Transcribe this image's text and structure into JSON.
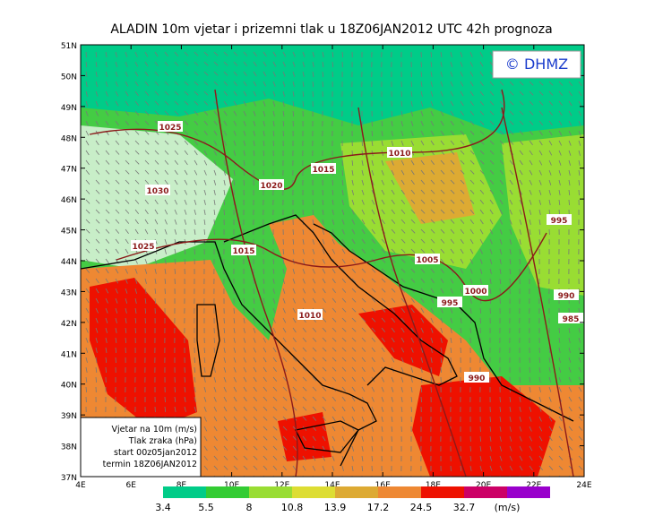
{
  "title": "ALADIN  10m  vjetar  i  prizemni  tlak  u  18Z06JAN2012  UTC  42h  prognoza",
  "logo": "© DHMZ",
  "lat_labels": [
    "51N",
    "50N",
    "49N",
    "48N",
    "47N",
    "46N",
    "45N",
    "44N",
    "43N",
    "42N",
    "41N",
    "40N",
    "39N",
    "38N",
    "37N"
  ],
  "lon_labels": [
    "4E",
    "6E",
    "8E",
    "10E",
    "12E",
    "14E",
    "16E",
    "18E",
    "20E",
    "22E",
    "24E"
  ],
  "info_box": [
    "Vjetar na 10m (m/s)",
    "Tlak zraka (hPa)",
    "start 00z05jan2012",
    "termin 18Z06JAN2012"
  ],
  "isobar_labels": [
    "1025",
    "1030",
    "1025",
    "1020",
    "1015",
    "1015",
    "1010",
    "1010",
    "1005",
    "1000",
    "995",
    "995",
    "990",
    "985",
    "990"
  ],
  "colorbar": {
    "colors": [
      "#00cc88",
      "#33cc33",
      "#99dd33",
      "#dddd33",
      "#ddaa33",
      "#ee8833",
      "#ee1100",
      "#cc0066",
      "#9900cc"
    ],
    "labels": [
      3.4,
      5.5,
      8,
      10.8,
      13.9,
      17.2,
      24.5,
      32.7
    ],
    "unit": "(m/s)"
  }
}
